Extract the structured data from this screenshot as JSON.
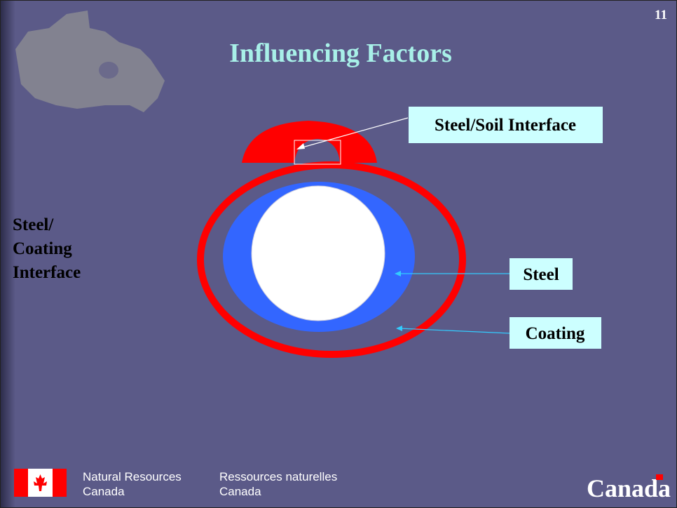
{
  "slide_number": "11",
  "title": "Influencing Factors",
  "callouts": [
    "Steel/Soil Interface",
    "Steel",
    "Coating"
  ],
  "side_label": [
    "Steel/",
    "Coating",
    "Interface"
  ],
  "footer": {
    "english": [
      "Natural Resources",
      "Canada"
    ],
    "french": [
      "Ressources naturelles",
      "Canada"
    ],
    "wordmark": "Canada"
  }
}
